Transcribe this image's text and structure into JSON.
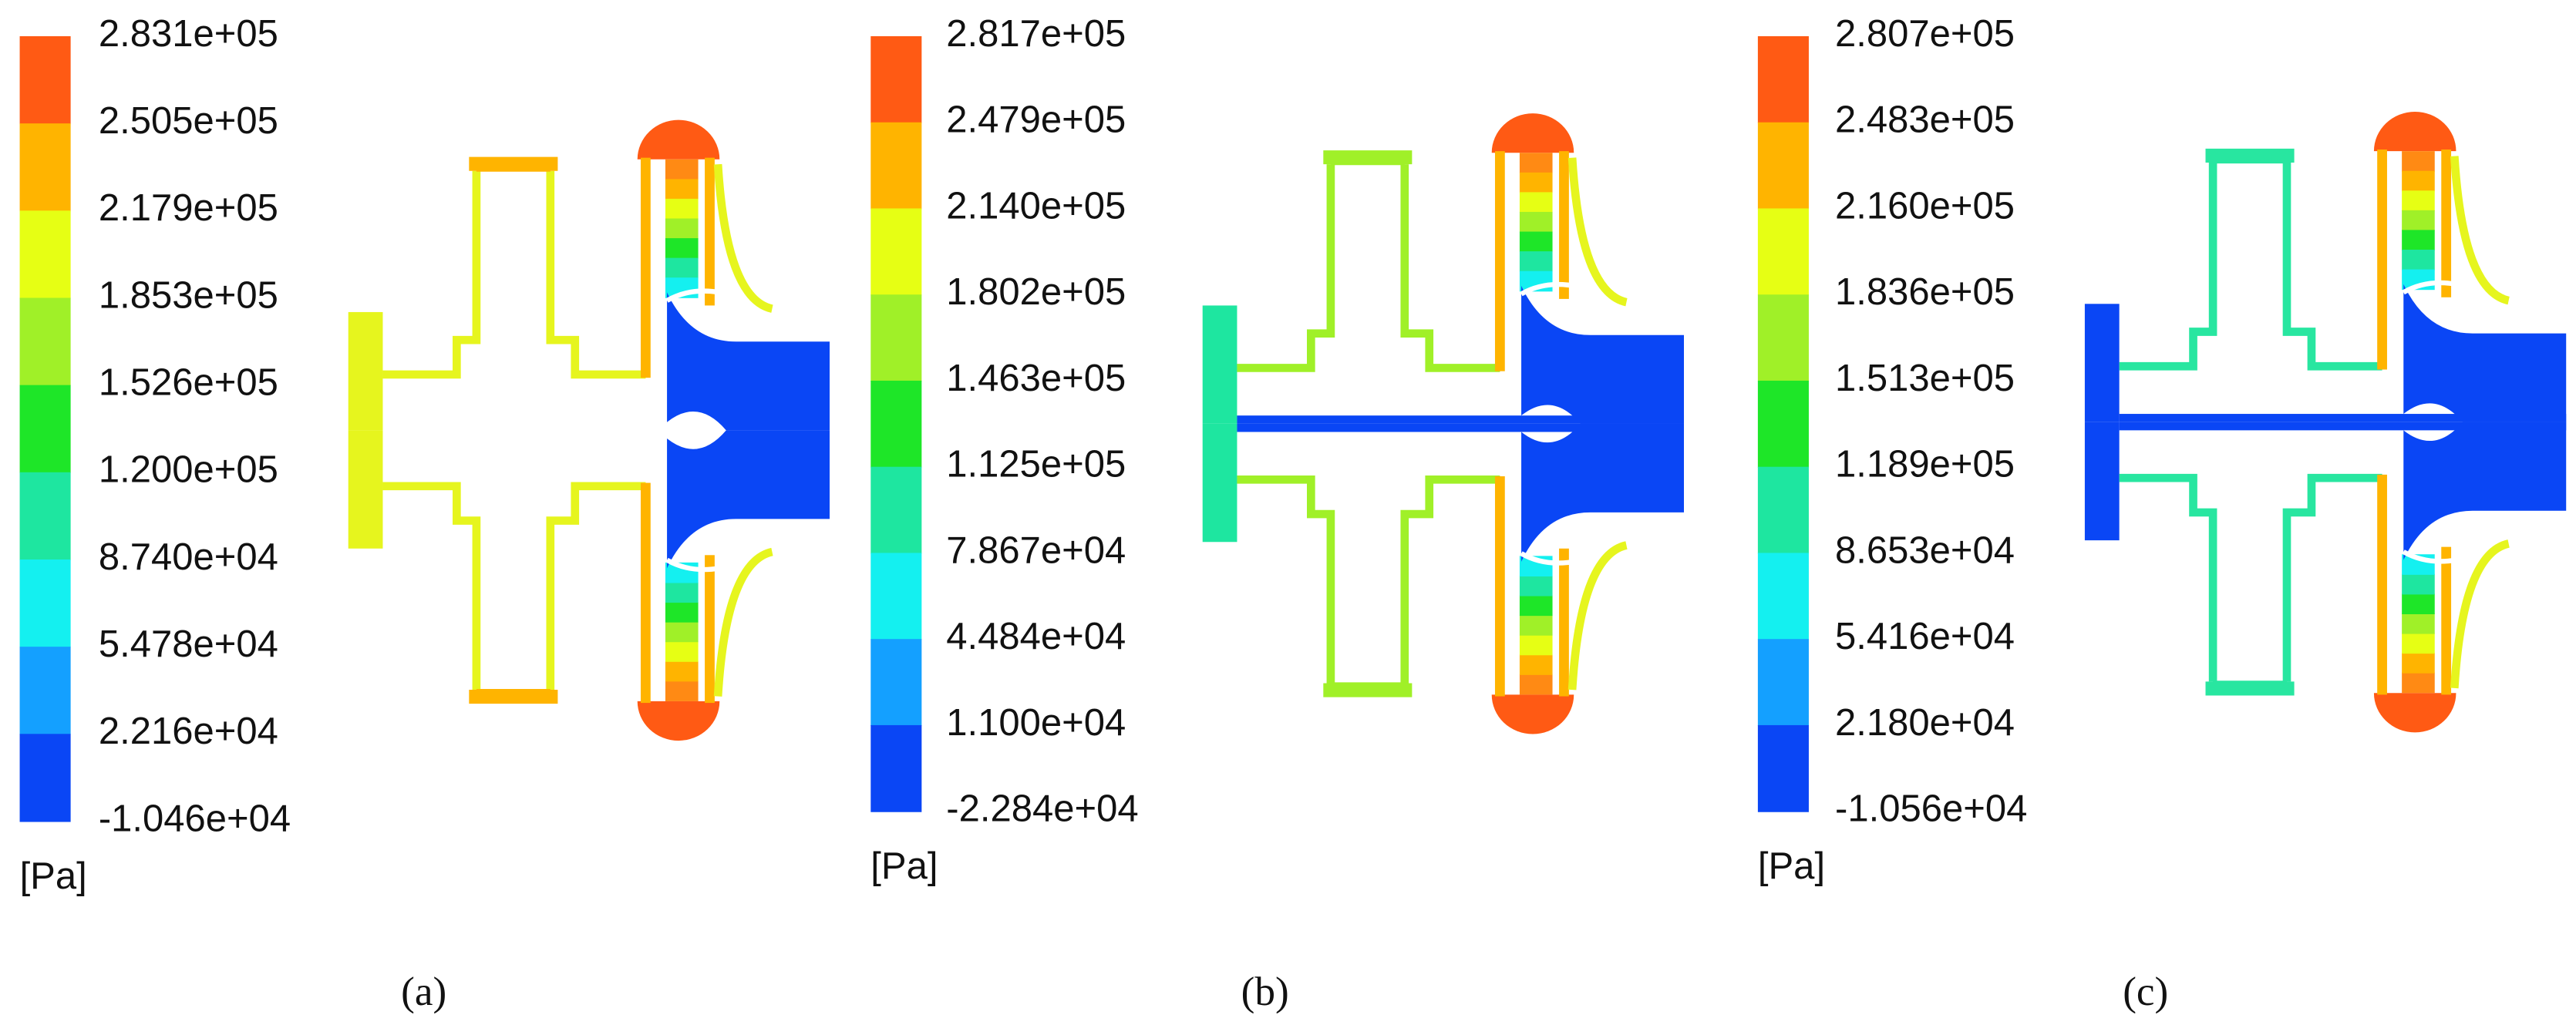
{
  "panels": [
    {
      "legend": {
        "labels": [
          "2.831e+05",
          "2.505e+05",
          "2.179e+05",
          "1.853e+05",
          "1.526e+05",
          "1.200e+05",
          "8.740e+04",
          "5.478e+04",
          "2.216e+04",
          "-1.046e+04"
        ],
        "unit": "[Pa]"
      },
      "caption": "(a)"
    },
    {
      "legend": {
        "labels": [
          "2.817e+05",
          "2.479e+05",
          "2.140e+05",
          "1.802e+05",
          "1.463e+05",
          "1.125e+05",
          "7.867e+04",
          "4.484e+04",
          "1.100e+04",
          "-2.284e+04"
        ],
        "unit": "[Pa]"
      },
      "caption": "(b)"
    },
    {
      "legend": {
        "labels": [
          "2.807e+05",
          "2.483e+05",
          "2.160e+05",
          "1.836e+05",
          "1.513e+05",
          "1.189e+05",
          "8.653e+04",
          "5.416e+04",
          "2.180e+04",
          "-1.056e+04"
        ],
        "unit": "[Pa]"
      },
      "caption": "(c)"
    }
  ]
}
